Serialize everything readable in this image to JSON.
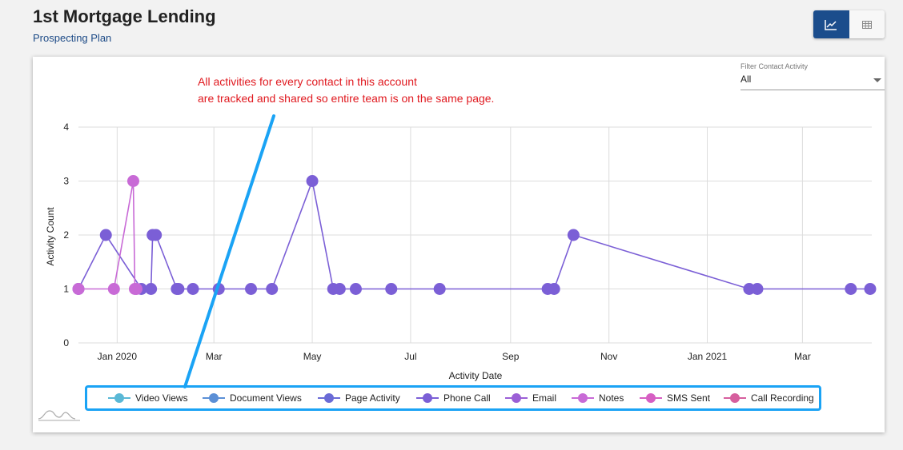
{
  "header": {
    "title": "1st Mortgage Lending",
    "subtitle": "Prospecting Plan"
  },
  "toolbar": {
    "chart_view_icon": "line-chart-icon",
    "table_view_icon": "table-icon"
  },
  "annotation": {
    "line1": "All activities for every contact in this account",
    "line2": "are tracked and shared so entire team is on the same page."
  },
  "filter": {
    "label": "Filter Contact Activity",
    "value": "All"
  },
  "colors": {
    "accent": "#1b4d8c",
    "annotation": "#e0191f",
    "highlight": "#1aa3f5"
  },
  "chart_data": {
    "type": "line",
    "title": "",
    "xlabel": "Activity Date",
    "ylabel": "Activity Count",
    "ylim": [
      0,
      4
    ],
    "yticks": [
      "0",
      "1",
      "2",
      "3",
      "4"
    ],
    "xlim": [
      "2019-12-08",
      "2021-04-13"
    ],
    "xticks": [
      {
        "date": "2020-01-01",
        "label": "Jan 2020"
      },
      {
        "date": "2020-03-01",
        "label": "Mar"
      },
      {
        "date": "2020-05-01",
        "label": "May"
      },
      {
        "date": "2020-07-01",
        "label": "Jul"
      },
      {
        "date": "2020-09-01",
        "label": "Sep"
      },
      {
        "date": "2020-11-01",
        "label": "Nov"
      },
      {
        "date": "2021-01-01",
        "label": "Jan 2021"
      },
      {
        "date": "2021-03-01",
        "label": "Mar"
      }
    ],
    "grid": true,
    "legend_position": "bottom",
    "series": [
      {
        "name": "Video Views",
        "color": "#5ab8d6",
        "points": []
      },
      {
        "name": "Document Views",
        "color": "#5b8fd6",
        "points": []
      },
      {
        "name": "Page Activity",
        "color": "#6a6bd6",
        "points": []
      },
      {
        "name": "Phone Call",
        "color": "#7b5fd6",
        "points": [
          [
            "2019-12-08",
            1
          ],
          [
            "2019-12-25",
            2
          ],
          [
            "2020-01-16",
            1
          ],
          [
            "2020-01-22",
            1
          ],
          [
            "2020-01-23",
            2
          ],
          [
            "2020-01-25",
            2
          ],
          [
            "2020-02-07",
            1
          ],
          [
            "2020-02-08",
            1
          ],
          [
            "2020-02-17",
            1
          ],
          [
            "2020-03-04",
            1
          ],
          [
            "2020-03-24",
            1
          ],
          [
            "2020-04-06",
            1
          ],
          [
            "2020-05-01",
            3
          ],
          [
            "2020-05-14",
            1
          ],
          [
            "2020-05-18",
            1
          ],
          [
            "2020-05-28",
            1
          ],
          [
            "2020-06-19",
            1
          ],
          [
            "2020-07-19",
            1
          ],
          [
            "2020-09-24",
            1
          ],
          [
            "2020-09-28",
            1
          ],
          [
            "2020-10-10",
            2
          ],
          [
            "2021-01-27",
            1
          ],
          [
            "2021-02-01",
            1
          ],
          [
            "2021-03-31",
            1
          ],
          [
            "2021-04-12",
            1
          ]
        ]
      },
      {
        "name": "Email",
        "color": "#9b5fd6",
        "points": []
      },
      {
        "name": "Notes",
        "color": "#c86ad6",
        "points": [
          [
            "2019-12-08",
            1
          ],
          [
            "2019-12-30",
            1
          ],
          [
            "2020-01-11",
            3
          ],
          [
            "2020-01-12",
            1
          ],
          [
            "2020-01-13",
            1
          ]
        ]
      },
      {
        "name": "SMS Sent",
        "color": "#d65fc3",
        "points": []
      },
      {
        "name": "Call Recording",
        "color": "#d65f9e",
        "points": []
      }
    ]
  }
}
